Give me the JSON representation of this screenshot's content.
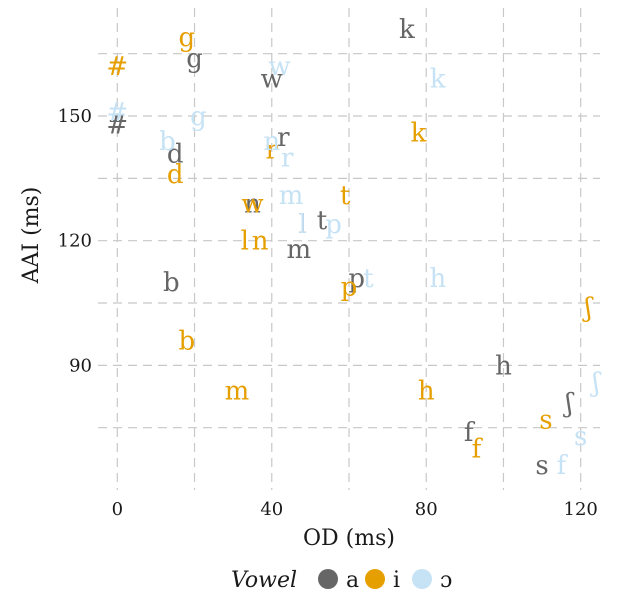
{
  "chart_data": {
    "type": "scatter",
    "title": "",
    "xlabel": "OD (ms)",
    "ylabel": "AAI (ms)",
    "xlim": [
      -5,
      125
    ],
    "ylim": [
      60,
      176
    ],
    "x_ticks": [
      0,
      40,
      80,
      120
    ],
    "x_tick_labels": [
      "0",
      "40",
      "80",
      "120"
    ],
    "y_ticks": [
      90,
      120,
      150
    ],
    "y_tick_labels": [
      "90",
      "120",
      "150"
    ],
    "x_minor_grid": [
      20,
      60,
      100
    ],
    "y_minor_grid": [
      75,
      105,
      135,
      165
    ],
    "grid": true,
    "legend": {
      "title": "Vowel",
      "position": "bottom",
      "entries": [
        {
          "label": "a",
          "color": "#666666"
        },
        {
          "label": "i",
          "color": "#E69F00"
        },
        {
          "label": "ɔ",
          "color": "#C6E2F5"
        }
      ]
    },
    "series": [
      {
        "name": "a",
        "color": "#666666",
        "points": [
          {
            "label": "k",
            "x": 75,
            "y": 171
          },
          {
            "label": "g",
            "x": 20,
            "y": 164
          },
          {
            "label": "w",
            "x": 40,
            "y": 159
          },
          {
            "label": "#",
            "x": 0,
            "y": 148
          },
          {
            "label": "r",
            "x": 43,
            "y": 145
          },
          {
            "label": "d",
            "x": 15,
            "y": 141
          },
          {
            "label": "n",
            "x": 35,
            "y": 129
          },
          {
            "label": "l",
            "x": 48,
            "y": 124
          },
          {
            "label": "t",
            "x": 53,
            "y": 125
          },
          {
            "label": "m",
            "x": 47,
            "y": 118
          },
          {
            "label": "p",
            "x": 62,
            "y": 111
          },
          {
            "label": "b",
            "x": 14,
            "y": 110
          },
          {
            "label": "h",
            "x": 100,
            "y": 90
          },
          {
            "label": "ʃ",
            "x": 117,
            "y": 81
          },
          {
            "label": "f",
            "x": 91,
            "y": 74
          },
          {
            "label": "s",
            "x": 110,
            "y": 66
          }
        ]
      },
      {
        "name": "i",
        "color": "#E69F00",
        "points": [
          {
            "label": "g",
            "x": 18,
            "y": 169
          },
          {
            "label": "#",
            "x": 0,
            "y": 162
          },
          {
            "label": "k",
            "x": 78,
            "y": 146
          },
          {
            "label": "r",
            "x": 40,
            "y": 142
          },
          {
            "label": "d",
            "x": 15,
            "y": 136
          },
          {
            "label": "t",
            "x": 59,
            "y": 131
          },
          {
            "label": "w",
            "x": 35,
            "y": 129
          },
          {
            "label": "l",
            "x": 33,
            "y": 120
          },
          {
            "label": "n",
            "x": 37,
            "y": 120
          },
          {
            "label": "p",
            "x": 60,
            "y": 109
          },
          {
            "label": "ʃ",
            "x": 122,
            "y": 104
          },
          {
            "label": "b",
            "x": 18,
            "y": 96
          },
          {
            "label": "m",
            "x": 31,
            "y": 84
          },
          {
            "label": "h",
            "x": 80,
            "y": 84
          },
          {
            "label": "s",
            "x": 111,
            "y": 77
          },
          {
            "label": "f",
            "x": 93,
            "y": 70
          }
        ]
      },
      {
        "name": "ɔ",
        "color": "#C6E2F5",
        "points": [
          {
            "label": "w",
            "x": 42,
            "y": 162
          },
          {
            "label": "k",
            "x": 83,
            "y": 159
          },
          {
            "label": "#",
            "x": 0,
            "y": 151
          },
          {
            "label": "g",
            "x": 21,
            "y": 150
          },
          {
            "label": "b",
            "x": 13,
            "y": 144
          },
          {
            "label": "n",
            "x": 40,
            "y": 144
          },
          {
            "label": "r",
            "x": 44,
            "y": 140
          },
          {
            "label": "m",
            "x": 45,
            "y": 131
          },
          {
            "label": "l",
            "x": 48,
            "y": 124
          },
          {
            "label": "p",
            "x": 56,
            "y": 124
          },
          {
            "label": "t",
            "x": 65,
            "y": 111
          },
          {
            "label": "h",
            "x": 83,
            "y": 111
          },
          {
            "label": "ʃ",
            "x": 124,
            "y": 86
          },
          {
            "label": "s",
            "x": 120,
            "y": 73
          },
          {
            "label": "f",
            "x": 115,
            "y": 66
          }
        ]
      }
    ]
  }
}
